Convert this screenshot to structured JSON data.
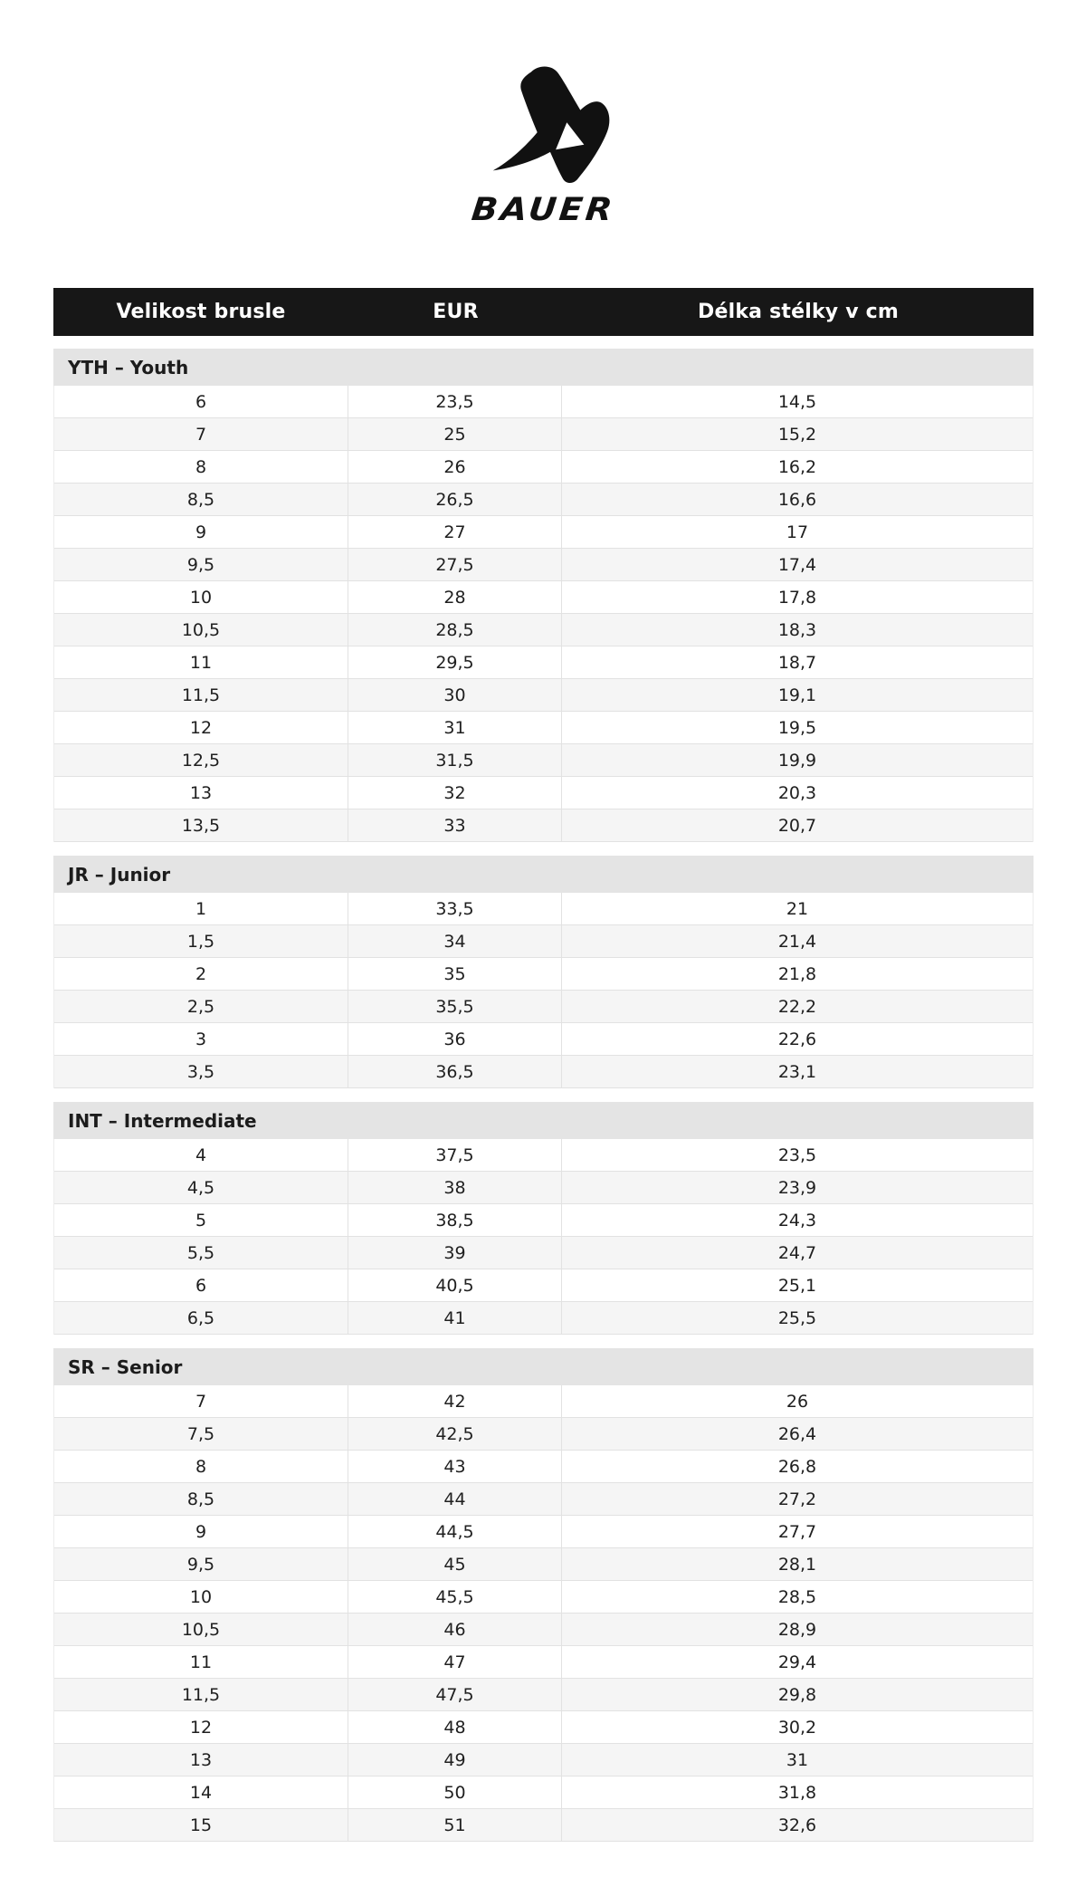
{
  "logo": {
    "brand": "BAUER",
    "icon": "bauer-x-icon"
  },
  "table": {
    "headers": [
      "Velikost brusle",
      "EUR",
      "Délka stélky v cm"
    ],
    "sections": [
      {
        "label": "YTH – Youth",
        "rows": [
          [
            "6",
            "23,5",
            "14,5"
          ],
          [
            "7",
            "25",
            "15,2"
          ],
          [
            "8",
            "26",
            "16,2"
          ],
          [
            "8,5",
            "26,5",
            "16,6"
          ],
          [
            "9",
            "27",
            "17"
          ],
          [
            "9,5",
            "27,5",
            "17,4"
          ],
          [
            "10",
            "28",
            "17,8"
          ],
          [
            "10,5",
            "28,5",
            "18,3"
          ],
          [
            "11",
            "29,5",
            "18,7"
          ],
          [
            "11,5",
            "30",
            "19,1"
          ],
          [
            "12",
            "31",
            "19,5"
          ],
          [
            "12,5",
            "31,5",
            "19,9"
          ],
          [
            "13",
            "32",
            "20,3"
          ],
          [
            "13,5",
            "33",
            "20,7"
          ]
        ]
      },
      {
        "label": "JR – Junior",
        "rows": [
          [
            "1",
            "33,5",
            "21"
          ],
          [
            "1,5",
            "34",
            "21,4"
          ],
          [
            "2",
            "35",
            "21,8"
          ],
          [
            "2,5",
            "35,5",
            "22,2"
          ],
          [
            "3",
            "36",
            "22,6"
          ],
          [
            "3,5",
            "36,5",
            "23,1"
          ]
        ]
      },
      {
        "label": "INT – Intermediate",
        "rows": [
          [
            "4",
            "37,5",
            "23,5"
          ],
          [
            "4,5",
            "38",
            "23,9"
          ],
          [
            "5",
            "38,5",
            "24,3"
          ],
          [
            "5,5",
            "39",
            "24,7"
          ],
          [
            "6",
            "40,5",
            "25,1"
          ],
          [
            "6,5",
            "41",
            "25,5"
          ]
        ]
      },
      {
        "label": "SR – Senior",
        "rows": [
          [
            "7",
            "42",
            "26"
          ],
          [
            "7,5",
            "42,5",
            "26,4"
          ],
          [
            "8",
            "43",
            "26,8"
          ],
          [
            "8,5",
            "44",
            "27,2"
          ],
          [
            "9",
            "44,5",
            "27,7"
          ],
          [
            "9,5",
            "45",
            "28,1"
          ],
          [
            "10",
            "45,5",
            "28,5"
          ],
          [
            "10,5",
            "46",
            "28,9"
          ],
          [
            "11",
            "47",
            "29,4"
          ],
          [
            "11,5",
            "47,5",
            "29,8"
          ],
          [
            "12",
            "48",
            "30,2"
          ],
          [
            "13",
            "49",
            "31"
          ],
          [
            "14",
            "50",
            "31,8"
          ],
          [
            "15",
            "51",
            "32,6"
          ]
        ]
      }
    ]
  },
  "colors": {
    "header_bg": "#171717",
    "section_bg": "#e4e4e4",
    "row_alt_bg": "#f5f5f5",
    "border": "#e2e2e2",
    "text": "#1a1a1a",
    "brand_black": "#111111"
  }
}
